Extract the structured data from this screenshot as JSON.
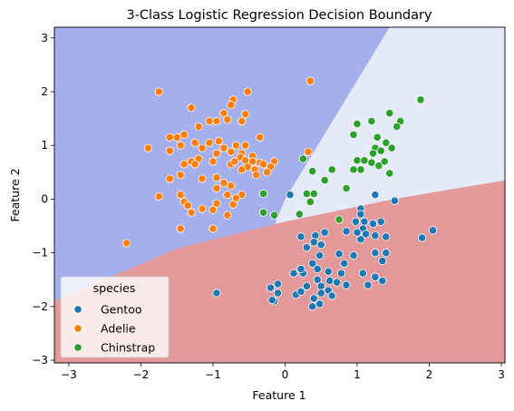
{
  "chart_data": {
    "type": "scatter",
    "title": "3-Class Logistic Regression Decision Boundary",
    "xlabel": "Feature 1",
    "ylabel": "Feature 2",
    "xlim": [
      -3.2,
      3.05
    ],
    "ylim": [
      -3.05,
      3.2
    ],
    "xticks": [
      -3,
      -2,
      -1,
      0,
      1,
      2,
      3
    ],
    "yticks": [
      -3,
      -2,
      -1,
      0,
      1,
      2,
      3
    ],
    "grid": false,
    "legend": {
      "title": "species",
      "placement": "lower-left"
    },
    "regions": [
      {
        "class": "Adelie",
        "color": "#a4b0ec"
      },
      {
        "class": "Chinstrap",
        "color": "#e4ebf6"
      },
      {
        "class": "Gentoo",
        "color": "#e3999a"
      }
    ],
    "boundaries": {
      "adelie_chinstrap": [
        [
          -0.92,
          -3.05
        ],
        [
          0.0,
          0.0
        ],
        [
          1.45,
          3.2
        ]
      ],
      "gentoo_upper": [
        [
          -3.2,
          -1.9
        ],
        [
          -1.5,
          -0.92
        ],
        [
          0.0,
          -0.42
        ],
        [
          1.5,
          0.0
        ],
        [
          3.05,
          0.35
        ]
      ]
    },
    "series": [
      {
        "name": "Gentoo",
        "color": "#1f77b4",
        "points": [
          [
            0.07,
            0.08
          ],
          [
            1.25,
            0.08
          ],
          [
            1.52,
            -0.03
          ],
          [
            1.05,
            -0.18
          ],
          [
            1.05,
            -0.28
          ],
          [
            0.98,
            -0.42
          ],
          [
            1.1,
            -0.42
          ],
          [
            1.33,
            -0.42
          ],
          [
            1.22,
            -0.46
          ],
          [
            1.08,
            -0.55
          ],
          [
            1.0,
            -0.62
          ],
          [
            1.12,
            -0.65
          ],
          [
            1.25,
            -0.68
          ],
          [
            1.4,
            -0.7
          ],
          [
            1.05,
            -0.75
          ],
          [
            0.85,
            -0.6
          ],
          [
            0.55,
            -0.62
          ],
          [
            0.22,
            -0.7
          ],
          [
            0.42,
            -0.68
          ],
          [
            0.4,
            -0.8
          ],
          [
            0.5,
            -0.85
          ],
          [
            1.9,
            -0.72
          ],
          [
            2.05,
            -0.58
          ],
          [
            0.3,
            -0.9
          ],
          [
            0.48,
            -1.05
          ],
          [
            0.75,
            -1.02
          ],
          [
            0.95,
            -1.05
          ],
          [
            1.25,
            -1.0
          ],
          [
            1.4,
            -1.0
          ],
          [
            1.35,
            -1.15
          ],
          [
            0.38,
            -1.2
          ],
          [
            0.45,
            -1.3
          ],
          [
            0.6,
            -1.35
          ],
          [
            0.25,
            -1.38
          ],
          [
            0.12,
            -1.38
          ],
          [
            0.22,
            -1.3
          ],
          [
            0.82,
            -1.2
          ],
          [
            0.78,
            -1.38
          ],
          [
            1.08,
            -1.38
          ],
          [
            1.25,
            -1.45
          ],
          [
            1.15,
            -1.6
          ],
          [
            -0.1,
            -1.58
          ],
          [
            0.45,
            -1.5
          ],
          [
            0.62,
            -1.52
          ],
          [
            0.72,
            -1.55
          ],
          [
            1.35,
            -1.52
          ],
          [
            -0.1,
            -1.75
          ],
          [
            0.15,
            -1.78
          ],
          [
            0.22,
            -1.72
          ],
          [
            0.3,
            -1.62
          ],
          [
            0.5,
            -1.62
          ],
          [
            0.6,
            -1.7
          ],
          [
            0.5,
            -1.75
          ],
          [
            0.65,
            -1.8
          ],
          [
            0.4,
            -1.85
          ],
          [
            0.48,
            -1.95
          ],
          [
            0.85,
            -1.6
          ],
          [
            -0.2,
            -1.65
          ],
          [
            -0.15,
            -1.9
          ],
          [
            -0.95,
            -1.75
          ],
          [
            -0.18,
            -1.88
          ],
          [
            0.38,
            -2.0
          ]
        ]
      },
      {
        "name": "Adelie",
        "color": "#ff7f0e",
        "points": [
          [
            -1.75,
            2.0
          ],
          [
            -0.52,
            2.0
          ],
          [
            0.35,
            2.2
          ],
          [
            -0.72,
            1.85
          ],
          [
            -1.3,
            1.7
          ],
          [
            -0.85,
            1.6
          ],
          [
            -0.55,
            1.58
          ],
          [
            -0.75,
            1.75
          ],
          [
            -1.05,
            1.45
          ],
          [
            -0.95,
            1.45
          ],
          [
            -0.8,
            1.48
          ],
          [
            -0.6,
            1.45
          ],
          [
            -1.5,
            1.15
          ],
          [
            -1.2,
            1.35
          ],
          [
            -1.4,
            1.2
          ],
          [
            -1.6,
            1.15
          ],
          [
            -1.9,
            0.95
          ],
          [
            -1.6,
            0.9
          ],
          [
            -1.45,
            1.0
          ],
          [
            -1.25,
            1.05
          ],
          [
            -1.05,
            1.05
          ],
          [
            -0.92,
            1.08
          ],
          [
            -1.15,
            0.95
          ],
          [
            -0.85,
            0.95
          ],
          [
            -0.68,
            1.0
          ],
          [
            -0.55,
            1.0
          ],
          [
            -0.75,
            0.88
          ],
          [
            -0.95,
            0.85
          ],
          [
            -0.6,
            0.85
          ],
          [
            -0.62,
            0.78
          ],
          [
            -0.45,
            0.8
          ],
          [
            -1.2,
            0.75
          ],
          [
            -1.3,
            0.7
          ],
          [
            -1.4,
            0.65
          ],
          [
            -1.25,
            0.65
          ],
          [
            -1.0,
            0.7
          ],
          [
            -0.75,
            0.65
          ],
          [
            -0.7,
            0.7
          ],
          [
            -0.55,
            0.72
          ],
          [
            -0.45,
            0.7
          ],
          [
            -0.35,
            0.68
          ],
          [
            -0.15,
            0.7
          ],
          [
            -0.3,
            0.65
          ],
          [
            -0.52,
            0.6
          ],
          [
            -0.6,
            0.55
          ],
          [
            -0.42,
            0.55
          ],
          [
            -0.2,
            0.6
          ],
          [
            -0.25,
            0.5
          ],
          [
            -0.4,
            0.45
          ],
          [
            -1.45,
            0.45
          ],
          [
            -1.6,
            0.38
          ],
          [
            -1.15,
            0.38
          ],
          [
            -0.95,
            0.4
          ],
          [
            -0.85,
            0.3
          ],
          [
            -0.75,
            0.25
          ],
          [
            -1.75,
            0.05
          ],
          [
            -1.45,
            0.08
          ],
          [
            -1.4,
            -0.05
          ],
          [
            -1.35,
            -0.12
          ],
          [
            -1.3,
            -0.25
          ],
          [
            -1.15,
            -0.18
          ],
          [
            -1.0,
            -0.2
          ],
          [
            -0.8,
            -0.3
          ],
          [
            -0.95,
            -0.08
          ],
          [
            -0.8,
            0.08
          ],
          [
            -0.6,
            0.08
          ],
          [
            -0.68,
            0.02
          ],
          [
            -0.72,
            -0.1
          ],
          [
            -1.45,
            -0.55
          ],
          [
            -1.0,
            -0.55
          ],
          [
            -2.2,
            -0.82
          ],
          [
            -0.95,
            0.2
          ],
          [
            0.32,
            0.88
          ],
          [
            -0.35,
            1.15
          ]
        ]
      },
      {
        "name": "Chinstrap",
        "color": "#2ca02c",
        "points": [
          [
            1.88,
            1.85
          ],
          [
            1.45,
            1.6
          ],
          [
            1.2,
            1.45
          ],
          [
            1.6,
            1.45
          ],
          [
            1.55,
            1.35
          ],
          [
            1.0,
            1.4
          ],
          [
            0.95,
            1.2
          ],
          [
            1.28,
            1.15
          ],
          [
            1.4,
            1.05
          ],
          [
            1.25,
            0.95
          ],
          [
            1.33,
            0.9
          ],
          [
            1.48,
            0.95
          ],
          [
            1.22,
            0.85
          ],
          [
            1.0,
            0.72
          ],
          [
            1.1,
            0.72
          ],
          [
            1.2,
            0.68
          ],
          [
            1.3,
            0.62
          ],
          [
            1.38,
            0.7
          ],
          [
            1.45,
            0.48
          ],
          [
            1.05,
            0.55
          ],
          [
            0.95,
            0.55
          ],
          [
            0.25,
            0.75
          ],
          [
            0.38,
            0.52
          ],
          [
            0.65,
            0.55
          ],
          [
            0.55,
            0.35
          ],
          [
            0.85,
            0.2
          ],
          [
            -0.3,
            0.1
          ],
          [
            0.3,
            0.1
          ],
          [
            0.35,
            -0.05
          ],
          [
            -0.3,
            -0.25
          ],
          [
            -0.15,
            -0.3
          ],
          [
            0.2,
            -0.28
          ],
          [
            0.75,
            -0.38
          ],
          [
            0.4,
            0.1
          ]
        ]
      }
    ]
  }
}
